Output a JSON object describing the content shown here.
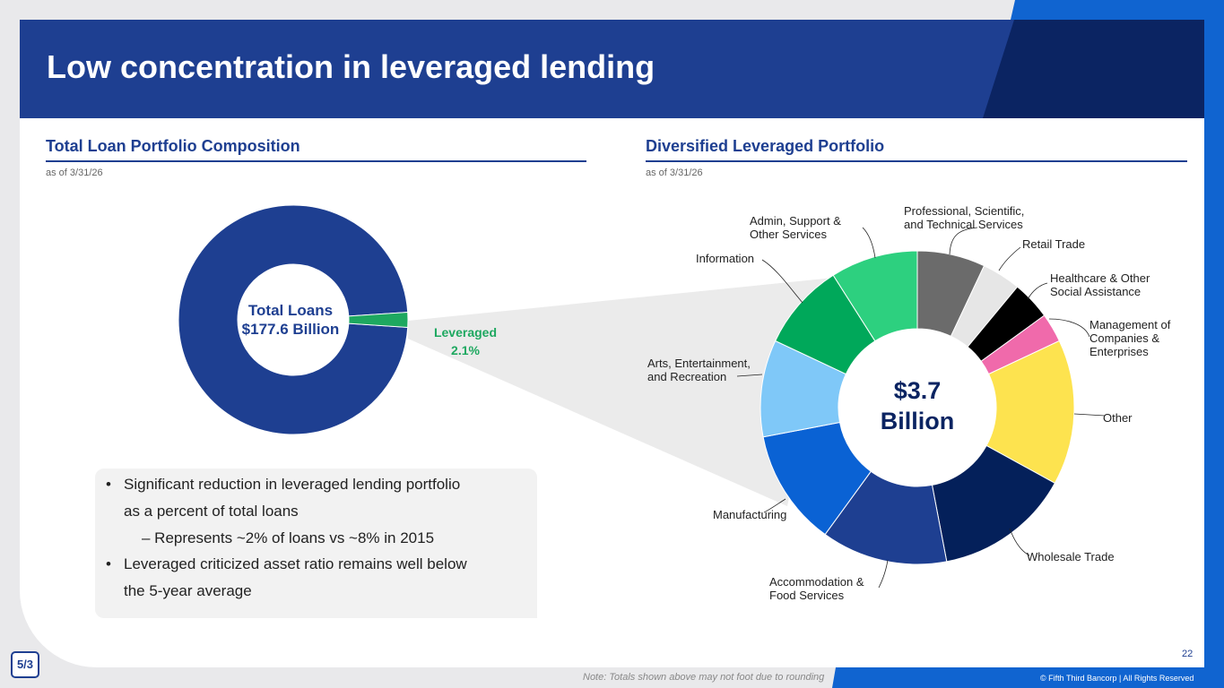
{
  "title": "Low concentration in leveraged lending",
  "left_panel": {
    "title": "Total Loan Portfolio Composition",
    "as_of": "as of 3/31/26"
  },
  "right_panel": {
    "title": "Diversified Leveraged Portfolio",
    "as_of": "as of 3/31/26"
  },
  "bullets": {
    "b1_line1": "Significant reduction in leveraged lending portfolio",
    "b1_line2": "as a percent of total loans",
    "sub1": "–  Represents ~2% of loans vs ~8% in 2015",
    "b2_line1": "Leveraged criticized asset ratio remains well below",
    "b2_line2": "the 5-year average"
  },
  "footer": {
    "note": "Note: Totals shown above may not foot due to rounding",
    "copyright": "© Fifth Third Bancorp | All Rights Reserved",
    "page_number": "22",
    "logo_text": "5/3"
  },
  "colors": {
    "brand_navy": "#1e3f91",
    "dark_navy": "#0b2462",
    "accent_blue": "#1064d0",
    "leveraged_green": "#1ea860"
  },
  "chart_data": [
    {
      "type": "pie",
      "variant": "donut",
      "center_label_line1": "Total Loans",
      "center_label_line2": "$177.6 Billion",
      "slices": [
        {
          "name": "",
          "value": 97.9,
          "color": "#1e3f91"
        },
        {
          "name": "Leveraged",
          "display": "2.1%",
          "value": 2.1,
          "color": "#1ea860"
        }
      ]
    },
    {
      "type": "pie",
      "variant": "donut",
      "center_label_line1": "$3.7",
      "center_label_line2": "Billion",
      "slices": [
        {
          "name": "Professional, Scientific, and Technical Services",
          "line1": "Professional, Scientific,",
          "line2": "and Technical Services",
          "value": 7,
          "color": "#6b6b6b"
        },
        {
          "name": "Retail Trade",
          "line1": "Retail Trade",
          "line2": "",
          "value": 4,
          "color": "#e6e6e6"
        },
        {
          "name": "Healthcare & Other Social Assistance",
          "line1": "Healthcare & Other",
          "line2": "Social Assistance",
          "value": 4,
          "color": "#000000"
        },
        {
          "name": "Management of Companies & Enterprises",
          "line1": "Management of",
          "line2": "Companies &",
          "line3": "Enterprises",
          "value": 3,
          "color": "#f06aab"
        },
        {
          "name": "Other",
          "line1": "Other",
          "line2": "",
          "value": 15,
          "color": "#fde34f"
        },
        {
          "name": "Wholesale Trade",
          "line1": "Wholesale Trade",
          "line2": "",
          "value": 14,
          "color": "#04205a"
        },
        {
          "name": "Accommodation & Food Services",
          "line1": "Accommodation &",
          "line2": "Food Services",
          "value": 13,
          "color": "#1e3f91"
        },
        {
          "name": "Manufacturing",
          "line1": "Manufacturing",
          "line2": "",
          "value": 12,
          "color": "#0a62d4"
        },
        {
          "name": "Arts, Entertainment, and Recreation",
          "line1": "Arts, Entertainment,",
          "line2": "and Recreation",
          "value": 10,
          "color": "#7fc8f8"
        },
        {
          "name": "Information",
          "line1": "Information",
          "line2": "",
          "value": 9,
          "color": "#00a85a"
        },
        {
          "name": "Admin, Support & Other Services",
          "line1": "Admin, Support &",
          "line2": "Other Services",
          "value": 9,
          "color": "#2dd07f"
        }
      ]
    }
  ]
}
